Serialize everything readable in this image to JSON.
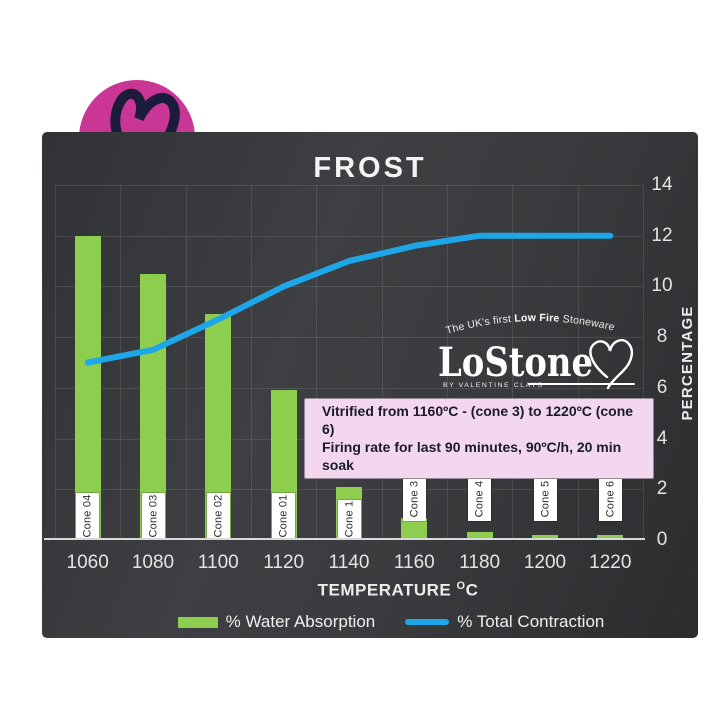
{
  "chart_title": "FROST",
  "brand_badge": {
    "icon": "heart-doodle-icon",
    "circle_color": "#c93695",
    "heart_color": "#1b1b3c"
  },
  "lostone_logo": {
    "tagline_pre": "The UK's first ",
    "tagline_bold": "Low Fire",
    "tagline_post": " Stoneware",
    "wordmark": "LoStone",
    "byline": "BY VALENTINE CLAYS"
  },
  "info_box": {
    "line1": "Vitrified from 1160ºC - (cone 3) to 1220ºC (cone 6)",
    "line2": "Firing rate for last 90 minutes,  90ºC/h, 20 min soak",
    "background": "#f2d7ee"
  },
  "x_axis": {
    "title_text": "TEMPERATURE ",
    "title_sup": "O",
    "title_unit": "C"
  },
  "y_axis": {
    "title": "PERCENTAGE"
  },
  "chart_data": {
    "type": "bar+line combo",
    "title": "FROST",
    "categories": [
      "1060",
      "1080",
      "1100",
      "1120",
      "1140",
      "1160",
      "1180",
      "1200",
      "1220"
    ],
    "cone_labels": [
      "Cone 04",
      "Cone 03",
      "Cone 02",
      "Cone 01",
      "Cone 1",
      "Cone 3",
      "Cone 4",
      "Cone 5",
      "Cone 6"
    ],
    "series": [
      {
        "name": "% Water Absorption",
        "type": "bar",
        "color": "#8ece4e",
        "values": [
          12,
          10.5,
          8.9,
          5.9,
          2.1,
          0.85,
          0.3,
          0.2,
          0.2
        ]
      },
      {
        "name": "% Total Contraction",
        "type": "line",
        "color": "#1ea7e8",
        "values": [
          7,
          7.5,
          8.7,
          10,
          11,
          11.6,
          12,
          12,
          12
        ]
      }
    ],
    "xlabel": "TEMPERATURE ºC",
    "ylabel": "PERCENTAGE",
    "ylim": [
      0,
      14
    ],
    "yticks": [
      14,
      12,
      10,
      8,
      6,
      4,
      2,
      0
    ],
    "grid": true,
    "legend_position": "bottom"
  }
}
